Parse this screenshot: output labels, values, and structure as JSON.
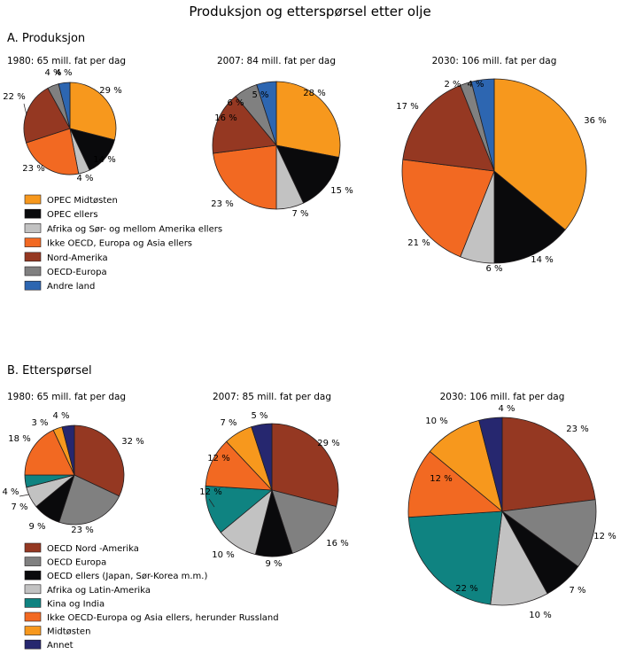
{
  "chart_data": {
    "title": "Produksjon og etterspørsel etter olje",
    "type": "pie",
    "panels": [
      {
        "id": "produksjon",
        "heading": "A.  Produksjon",
        "categories": [
          "OPEC Midtøsten",
          "OPEC ellers",
          "Afrika og Sør- og mellom Amerika ellers",
          "Ikke OECD, Europa og Asia ellers",
          "Nord-Amerika",
          "OECD-Europa",
          "Andre land"
        ],
        "colors": [
          "#f7981d",
          "#0a0a0c",
          "#c2c2c2",
          "#f26922",
          "#953822",
          "#808080",
          "#2d66b1"
        ],
        "charts": [
          {
            "subtitle": "1980: 65 mill. fat per dag",
            "values": [
              29,
              14,
              4,
              23,
              22,
              4,
              4
            ],
            "labels": [
              "29 %",
              "14 %",
              "4 %",
              "23 %",
              "22 %",
              "4 %",
              "4 %"
            ]
          },
          {
            "subtitle": "2007: 84 mill. fat per dag",
            "values": [
              28,
              15,
              7,
              23,
              16,
              6,
              5
            ],
            "labels": [
              "28 %",
              "15 %",
              "7 %",
              "23 %",
              "16 %",
              "6 %",
              "5 %"
            ]
          },
          {
            "subtitle": "2030: 106 mill. fat per dag",
            "values": [
              36,
              14,
              6,
              21,
              17,
              2,
              4
            ],
            "labels": [
              "36 %",
              "14 %",
              "6 %",
              "21 %",
              "17 %",
              "2 %",
              "4 %"
            ]
          }
        ]
      },
      {
        "id": "ettersporsel",
        "heading": "B.  Etterspørsel",
        "categories": [
          "OECD Nord -Amerika",
          "OECD Europa",
          "OECD ellers (Japan, Sør-Korea m.m.)",
          "Afrika og Latin-Amerika",
          "Kina og India",
          "Ikke OECD-Europa og Asia ellers, herunder Russland",
          "Midtøsten",
          "Annet"
        ],
        "colors": [
          "#953822",
          "#808080",
          "#0a0a0c",
          "#c2c2c2",
          "#0f8381",
          "#f26922",
          "#f7981d",
          "#26276f"
        ],
        "charts": [
          {
            "subtitle": "1980: 65 mill. fat per dag",
            "values": [
              32,
              23,
              9,
              7,
              4,
              18,
              3,
              4
            ],
            "labels": [
              "32 %",
              "23 %",
              "9 %",
              "7 %",
              "4 %",
              "18 %",
              "3 %",
              "4 %"
            ]
          },
          {
            "subtitle": "2007: 85 mill. fat per dag",
            "values": [
              29,
              16,
              9,
              10,
              12,
              12,
              7,
              5
            ],
            "labels": [
              "29 %",
              "16 %",
              "9 %",
              "10 %",
              "12 %",
              "12 %",
              "7 %",
              "5 %"
            ]
          },
          {
            "subtitle": "2030: 106 mill. fat per dag",
            "values": [
              23,
              12,
              7,
              10,
              22,
              12,
              10,
              4
            ],
            "labels": [
              "23 %",
              "12 %",
              "7 %",
              "10 %",
              "22 %",
              "12 %",
              "10 %",
              "4 %"
            ]
          }
        ]
      }
    ],
    "legend_placement": "bottom-left of each section"
  }
}
